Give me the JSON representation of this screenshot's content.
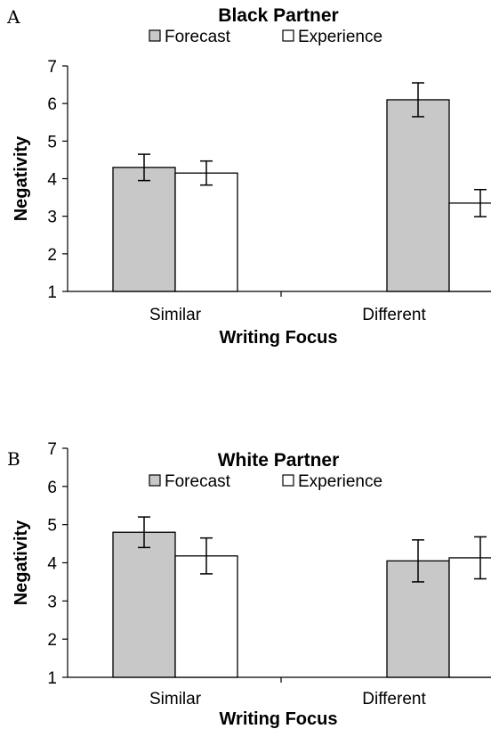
{
  "chart_data": [
    {
      "panel": "A",
      "type": "bar",
      "title": "Black Partner",
      "xlabel": "Writing Focus",
      "ylabel": "Negativity",
      "categories": [
        "Similar",
        "Different"
      ],
      "ylim": [
        1,
        7
      ],
      "yticks": [
        1,
        2,
        3,
        4,
        5,
        6,
        7
      ],
      "legend_position": "top",
      "series": [
        {
          "name": "Forecast",
          "values": [
            4.3,
            6.1
          ],
          "errors": [
            0.35,
            0.45
          ]
        },
        {
          "name": "Experience",
          "values": [
            4.15,
            3.35
          ],
          "errors": [
            0.32,
            0.36
          ]
        }
      ]
    },
    {
      "panel": "B",
      "type": "bar",
      "title": "White Partner",
      "xlabel": "Writing Focus",
      "ylabel": "Negativity",
      "categories": [
        "Similar",
        "Different"
      ],
      "ylim": [
        1,
        7
      ],
      "yticks": [
        1,
        2,
        3,
        4,
        5,
        6,
        7
      ],
      "legend_position": "top",
      "series": [
        {
          "name": "Forecast",
          "values": [
            4.8,
            4.05
          ],
          "errors": [
            0.4,
            0.55
          ]
        },
        {
          "name": "Experience",
          "values": [
            4.18,
            4.13
          ],
          "errors": [
            0.47,
            0.55
          ]
        }
      ]
    }
  ],
  "colors": {
    "forecast": "#c8c8c8",
    "experience": "#ffffff",
    "stroke": "#000000"
  }
}
